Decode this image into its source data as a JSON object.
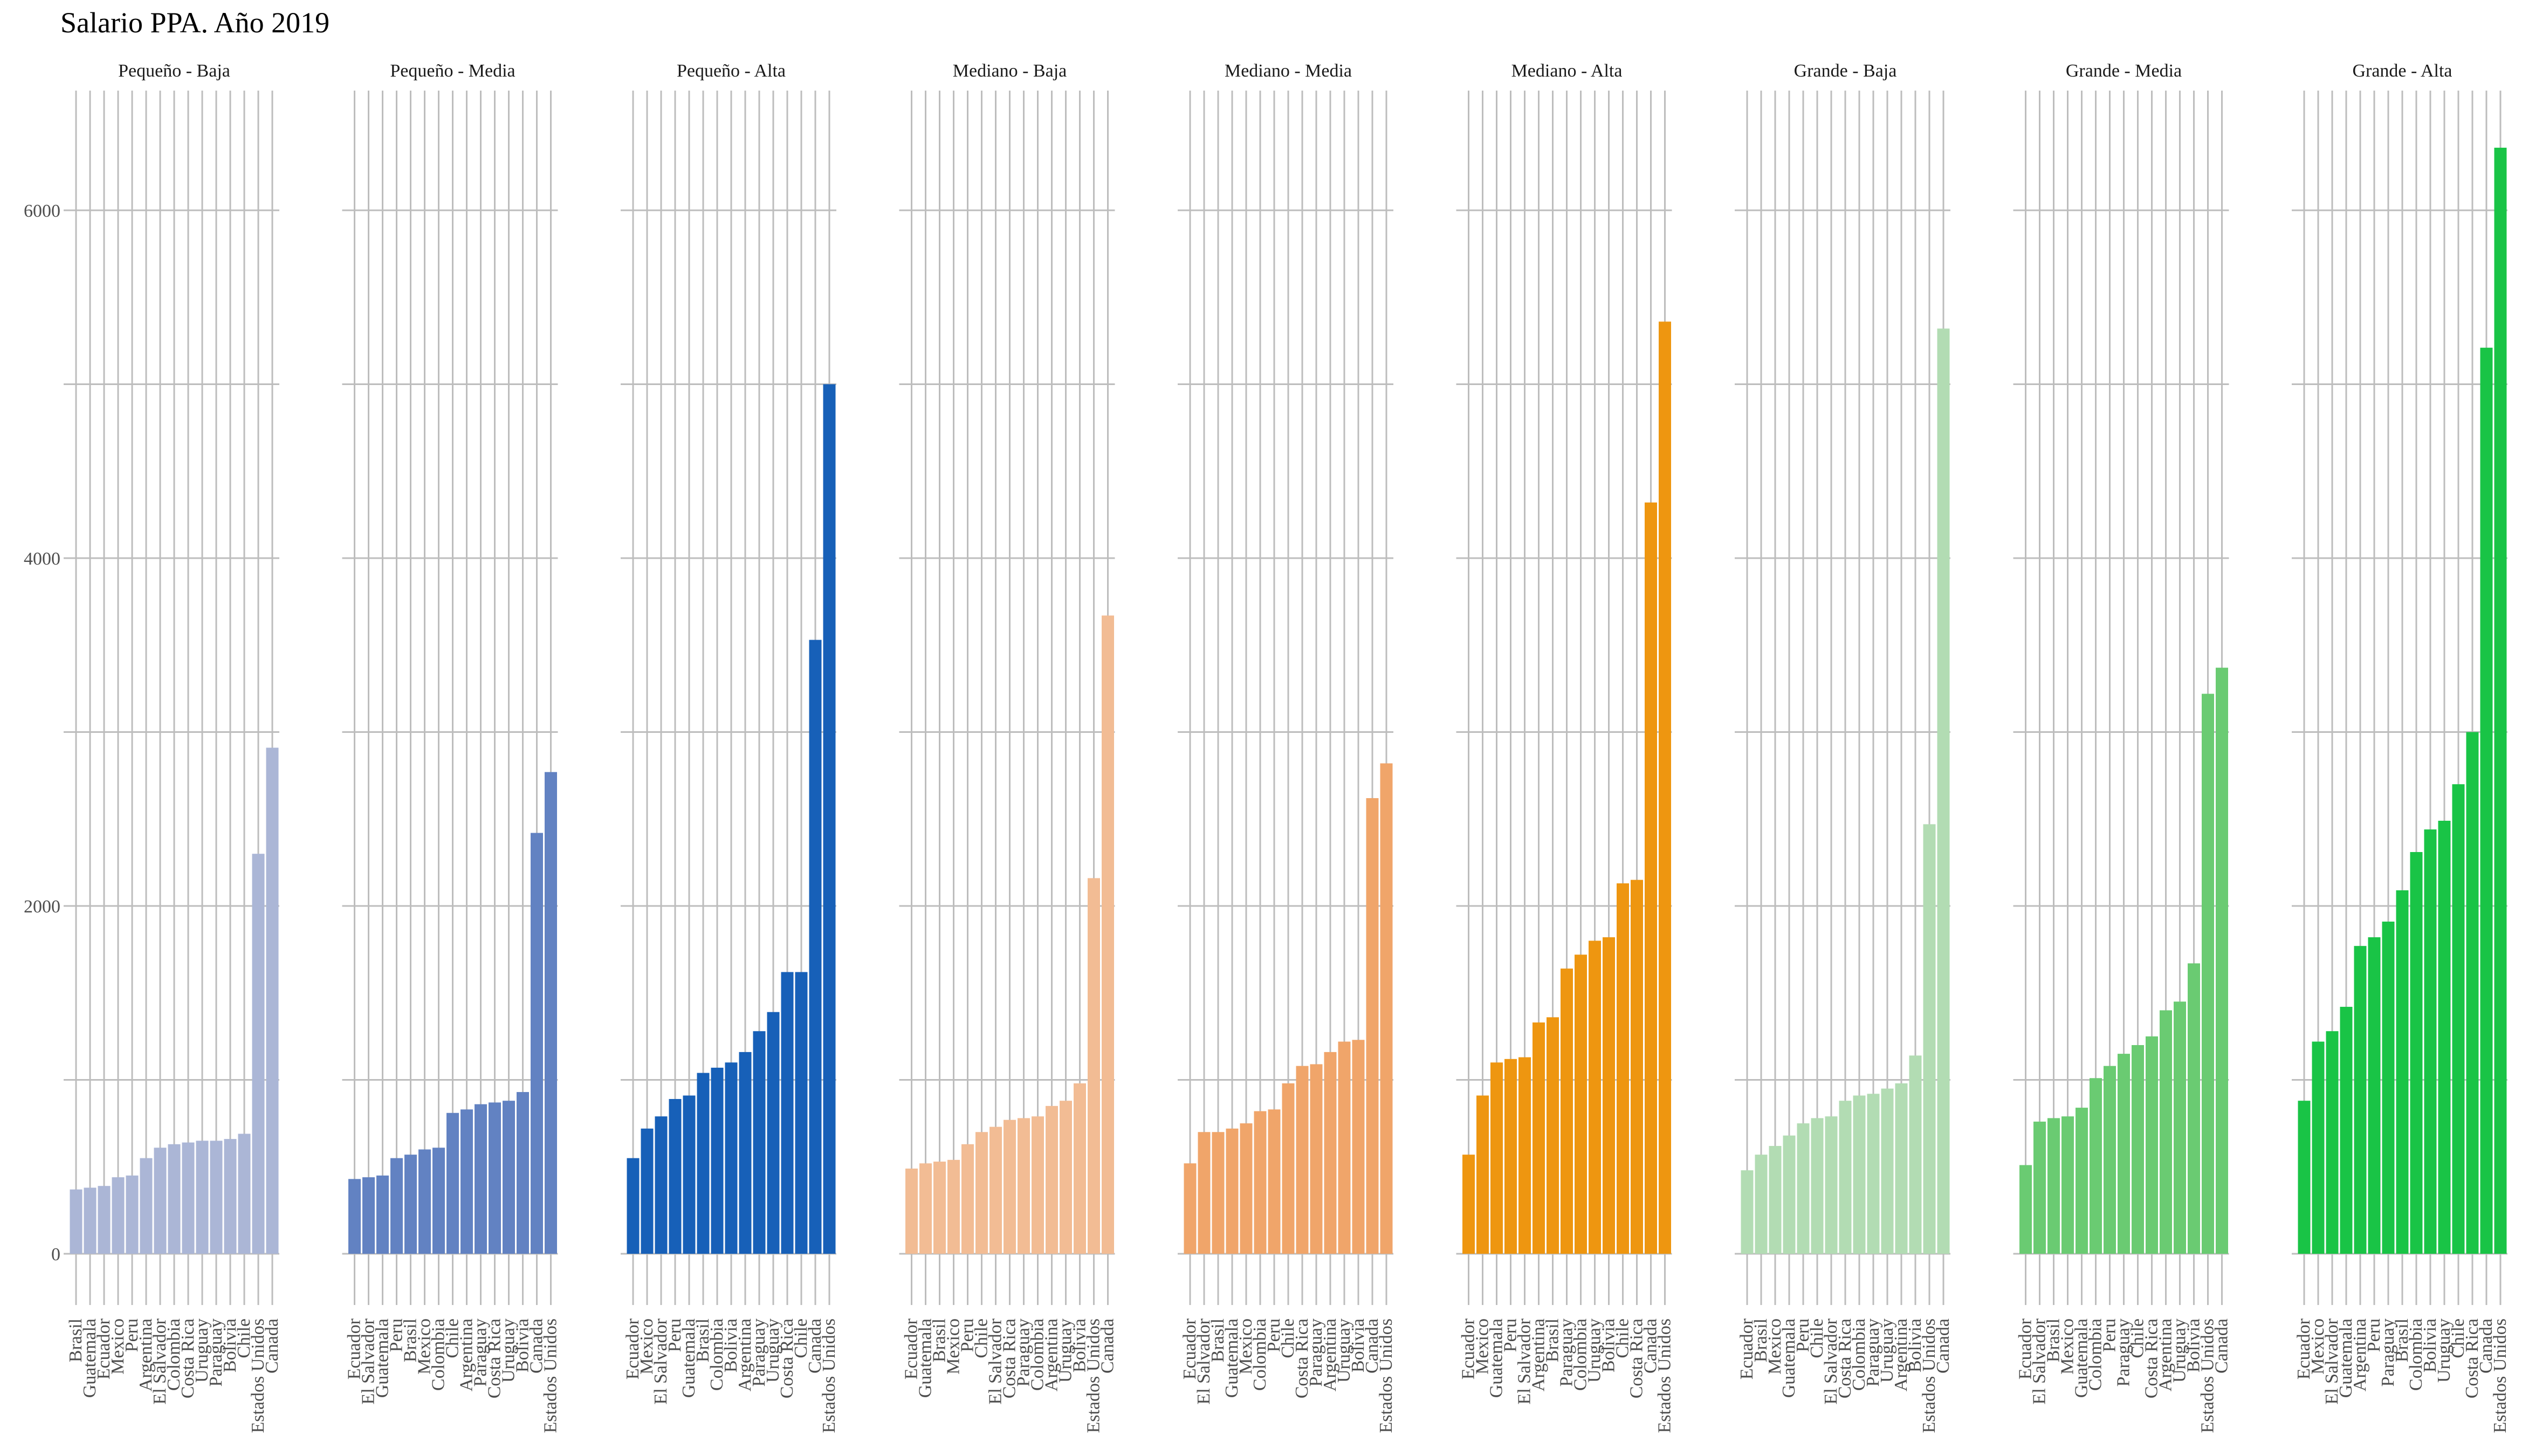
{
  "chart_data": {
    "type": "bar",
    "title": "Salario PPA. Año 2019",
    "xlabel": "",
    "ylabel": "",
    "ylim": [
      0,
      6700
    ],
    "yticks": [
      0,
      2000,
      4000,
      6000
    ],
    "grid": true,
    "panels": [
      {
        "label": "Pequeño - Baja",
        "color": "#abb6d6",
        "categories": [
          "Brasil",
          "Guatemala",
          "Ecuador",
          "Mexico",
          "Peru",
          "Argentina",
          "El Salvador",
          "Colombia",
          "Costa Rica",
          "Uruguay",
          "Paraguay",
          "Bolivia",
          "Chile",
          "Estados Unidos",
          "Canada"
        ],
        "values": [
          370,
          380,
          390,
          440,
          450,
          550,
          610,
          630,
          640,
          650,
          650,
          660,
          690,
          2300,
          2910
        ]
      },
      {
        "label": "Pequeño - Media",
        "color": "#6282c2",
        "categories": [
          "Ecuador",
          "El Salvador",
          "Guatemala",
          "Peru",
          "Brasil",
          "Mexico",
          "Colombia",
          "Chile",
          "Argentina",
          "Paraguay",
          "Costa Rica",
          "Uruguay",
          "Bolivia",
          "Canada",
          "Estados Unidos"
        ],
        "values": [
          430,
          440,
          450,
          550,
          570,
          600,
          610,
          810,
          830,
          860,
          870,
          880,
          930,
          2420,
          2770
        ]
      },
      {
        "label": "Pequeño - Alta",
        "color": "#1760b8",
        "categories": [
          "Ecuador",
          "Mexico",
          "El Salvador",
          "Peru",
          "Guatemala",
          "Brasil",
          "Colombia",
          "Bolivia",
          "Argentina",
          "Paraguay",
          "Uruguay",
          "Costa Rica",
          "Chile",
          "Canada",
          "Estados Unidos"
        ],
        "values": [
          550,
          720,
          790,
          890,
          910,
          1040,
          1070,
          1100,
          1160,
          1280,
          1390,
          1620,
          1620,
          3530,
          5000
        ]
      },
      {
        "label": "Mediano - Baja",
        "color": "#f2bc94",
        "categories": [
          "Ecuador",
          "Guatemala",
          "Brasil",
          "Mexico",
          "Peru",
          "Chile",
          "El Salvador",
          "Costa Rica",
          "Paraguay",
          "Colombia",
          "Argentina",
          "Uruguay",
          "Bolivia",
          "Estados Unidos",
          "Canada"
        ],
        "values": [
          490,
          520,
          530,
          540,
          630,
          700,
          730,
          770,
          780,
          790,
          850,
          880,
          980,
          2160,
          3670
        ]
      },
      {
        "label": "Mediano - Media",
        "color": "#f0a56a",
        "categories": [
          "Ecuador",
          "El Salvador",
          "Brasil",
          "Guatemala",
          "Mexico",
          "Colombia",
          "Peru",
          "Chile",
          "Costa Rica",
          "Paraguay",
          "Argentina",
          "Uruguay",
          "Bolivia",
          "Canada",
          "Estados Unidos"
        ],
        "values": [
          520,
          700,
          700,
          720,
          750,
          820,
          830,
          980,
          1080,
          1090,
          1160,
          1220,
          1230,
          2620,
          2820
        ]
      },
      {
        "label": "Mediano - Alta",
        "color": "#ee9610",
        "categories": [
          "Ecuador",
          "Mexico",
          "Guatemala",
          "Peru",
          "El Salvador",
          "Argentina",
          "Brasil",
          "Paraguay",
          "Colombia",
          "Uruguay",
          "Bolivia",
          "Chile",
          "Costa Rica",
          "Canada",
          "Estados Unidos"
        ],
        "values": [
          570,
          910,
          1100,
          1120,
          1130,
          1330,
          1360,
          1640,
          1720,
          1800,
          1820,
          2130,
          2150,
          4320,
          5360
        ]
      },
      {
        "label": "Grande - Baja",
        "color": "#b2dcb3",
        "categories": [
          "Ecuador",
          "Brasil",
          "Mexico",
          "Guatemala",
          "Peru",
          "Chile",
          "El Salvador",
          "Costa Rica",
          "Colombia",
          "Paraguay",
          "Uruguay",
          "Argentina",
          "Bolivia",
          "Estados Unidos",
          "Canada"
        ],
        "values": [
          480,
          570,
          620,
          680,
          750,
          780,
          790,
          880,
          910,
          920,
          950,
          980,
          1140,
          2470,
          5320
        ]
      },
      {
        "label": "Grande - Media",
        "color": "#6acb72",
        "categories": [
          "Ecuador",
          "El Salvador",
          "Brasil",
          "Mexico",
          "Guatemala",
          "Colombia",
          "Peru",
          "Paraguay",
          "Chile",
          "Costa Rica",
          "Argentina",
          "Uruguay",
          "Bolivia",
          "Estados Unidos",
          "Canada"
        ],
        "values": [
          510,
          760,
          780,
          790,
          840,
          1010,
          1080,
          1150,
          1200,
          1250,
          1400,
          1450,
          1670,
          3220,
          3370
        ]
      },
      {
        "label": "Grande - Alta",
        "color": "#19c446",
        "categories": [
          "Ecuador",
          "Mexico",
          "El Salvador",
          "Guatemala",
          "Argentina",
          "Peru",
          "Paraguay",
          "Brasil",
          "Colombia",
          "Bolivia",
          "Uruguay",
          "Chile",
          "Costa Rica",
          "Canada",
          "Estados Unidos"
        ],
        "values": [
          880,
          1220,
          1280,
          1420,
          1770,
          1820,
          1910,
          2090,
          2310,
          2440,
          2490,
          2700,
          3000,
          5210,
          6360
        ]
      }
    ]
  }
}
